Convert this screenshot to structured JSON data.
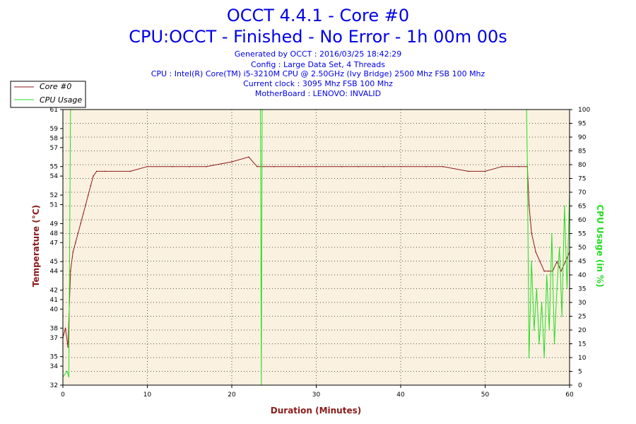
{
  "header": {
    "title": "OCCT 4.4.1 - Core #0",
    "subtitle": "CPU:OCCT - Finished - No Error - 1h 00m 00s",
    "info_lines": [
      "Generated by OCCT : 2016/03/25 18:42:29",
      "Config : Large Data Set, 4 Threads",
      "CPU : Intel(R) Core(TM) i5-3210M CPU @ 2.50GHz (Ivy Bridge) 2500 Mhz FSB 100 Mhz",
      "Current clock : 3095 Mhz FSB 100 Mhz",
      "MotherBoard : LENOVO: INVALID"
    ]
  },
  "colors": {
    "temperature": "#8b1a1a",
    "cpu_usage": "#22dd22",
    "plot_bg": "#fbf1e0",
    "grid": "#555555",
    "title": "#0000e6"
  },
  "chart_data": {
    "type": "line",
    "xlabel": "Duration (Minutes)",
    "ylabel_left": "Temperature (°C)",
    "ylabel_right": "CPU Usage (in %)",
    "xlim": [
      0,
      60
    ],
    "ylim_left": [
      32,
      61
    ],
    "ylim_right": [
      0,
      100
    ],
    "x_ticks": [
      0,
      10,
      20,
      30,
      40,
      50,
      60
    ],
    "y_left_ticks": [
      32,
      34,
      35,
      37,
      38,
      40,
      41,
      42,
      44,
      45,
      47,
      48,
      49,
      51,
      52,
      54,
      55,
      57,
      58,
      59,
      61
    ],
    "y_left_tick_labels": [
      "32",
      "34",
      "35",
      "37",
      "38",
      "40",
      "41",
      "42",
      "44",
      "45",
      "47",
      "48",
      "49",
      "51",
      "52",
      "54",
      "55",
      "57",
      "58",
      "59",
      "61"
    ],
    "y_right_ticks": [
      0,
      5,
      10,
      15,
      20,
      25,
      30,
      35,
      40,
      45,
      50,
      55,
      60,
      65,
      70,
      75,
      80,
      85,
      90,
      95,
      100
    ],
    "grid": true,
    "legend_position": "top-left",
    "series": [
      {
        "name": "Core #0",
        "axis": "left",
        "x": [
          0,
          0.3,
          0.6,
          0.9,
          1.2,
          1.5,
          1.8,
          2.1,
          2.4,
          2.7,
          3.0,
          3.3,
          3.6,
          4.0,
          5,
          8,
          10,
          13,
          15,
          17,
          20,
          22,
          23,
          25,
          28,
          30,
          33,
          35,
          38,
          40,
          43,
          45,
          48,
          50,
          52,
          54,
          55,
          55.2,
          55.5,
          56,
          56.5,
          57,
          57.5,
          58,
          58.5,
          59,
          59.5,
          60
        ],
        "values": [
          37,
          38,
          36,
          44,
          46,
          47,
          48,
          49,
          50,
          51,
          52,
          53,
          54,
          54.5,
          54.5,
          54.5,
          55,
          55,
          55,
          55,
          55.5,
          56,
          55,
          55,
          55,
          55,
          55,
          55,
          55,
          55,
          55,
          55,
          54.5,
          54.5,
          55,
          55,
          55,
          51,
          48,
          46,
          45,
          44,
          44,
          44,
          45,
          44,
          45,
          46
        ]
      },
      {
        "name": "CPU Usage",
        "axis": "right",
        "x": [
          0,
          0.5,
          0.7,
          0.9,
          1.1,
          23.4,
          23.5,
          23.6,
          54.9,
          55.0,
          55.2,
          55.5,
          55.8,
          56.1,
          56.4,
          56.7,
          57.0,
          57.3,
          57.6,
          57.9,
          58.2,
          58.5,
          58.8,
          59.1,
          59.4,
          59.7,
          60
        ],
        "values": [
          3,
          5,
          3,
          100,
          100,
          100,
          0,
          100,
          100,
          80,
          10,
          45,
          20,
          35,
          15,
          30,
          10,
          40,
          20,
          55,
          15,
          35,
          50,
          25,
          65,
          35,
          70
        ]
      }
    ]
  }
}
